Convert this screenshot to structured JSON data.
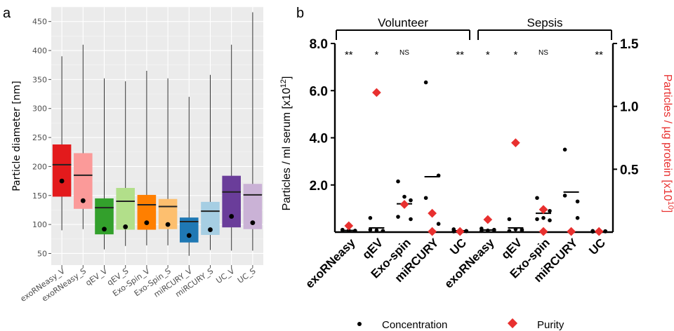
{
  "panels": {
    "a": "a",
    "b": "b"
  },
  "chart_data": [
    {
      "type": "box",
      "ylabel": "Particle diameter [nm]",
      "xlabel": "",
      "ylim": [
        30,
        475
      ],
      "yticks": [
        50,
        100,
        150,
        200,
        250,
        300,
        350,
        400,
        450
      ],
      "grid": true,
      "categories": [
        "exoRNeasy_V",
        "exoRNeasy_S",
        "qEV_V",
        "qEV_S",
        "Exo-Spin_V",
        "Exo-Spin_S",
        "miRCURY_V",
        "miRCURY_S",
        "UC_V",
        "UC_S"
      ],
      "boxes": [
        {
          "min": 90,
          "q1": 148,
          "median": 203,
          "q3": 238,
          "max": 390,
          "point": 175,
          "color": "#e31a1c"
        },
        {
          "min": 92,
          "q1": 127,
          "median": 185,
          "q3": 223,
          "max": 410,
          "point": 141,
          "color": "#fb9a99"
        },
        {
          "min": 57,
          "q1": 83,
          "median": 129,
          "q3": 145,
          "max": 352,
          "point": 92,
          "color": "#33a02c"
        },
        {
          "min": 63,
          "q1": 91,
          "median": 140,
          "q3": 163,
          "max": 347,
          "point": 96,
          "color": "#b2df8a"
        },
        {
          "min": 64,
          "q1": 91,
          "median": 134,
          "q3": 151,
          "max": 365,
          "point": 103,
          "color": "#ff7f00"
        },
        {
          "min": 64,
          "q1": 92,
          "median": 131,
          "q3": 144,
          "max": 352,
          "point": 100,
          "color": "#fdbf6f"
        },
        {
          "min": 46,
          "q1": 69,
          "median": 105,
          "q3": 112,
          "max": 320,
          "point": 81,
          "color": "#1f78b4"
        },
        {
          "min": 56,
          "q1": 82,
          "median": 123,
          "q3": 139,
          "max": 358,
          "point": 91,
          "color": "#a6cee3"
        },
        {
          "min": 55,
          "q1": 95,
          "median": 156,
          "q3": 184,
          "max": 410,
          "point": 114,
          "color": "#6a3d9a"
        },
        {
          "min": 55,
          "q1": 92,
          "median": 151,
          "q3": 170,
          "max": 466,
          "point": 103,
          "color": "#cab2d6"
        }
      ]
    },
    {
      "type": "scatter",
      "ylabel_left": "Particles / ml  serum [x10",
      "ylabel_left_sup": "12",
      "ylabel_left_end": "]",
      "ylabel_right": "Particles / µg protein [x10",
      "ylabel_right_sup": "10",
      "ylabel_right_end": "]",
      "ylim_left": [
        0,
        8.0
      ],
      "ylim_right": [
        0,
        1.5
      ],
      "yticks_left": [
        "8.0",
        "6.0",
        "4.0",
        "2.0"
      ],
      "yticks_left_values": [
        8.0,
        6.0,
        4.0,
        2.0
      ],
      "yticks_right": [
        "1.5",
        "1.0",
        "0.5"
      ],
      "yticks_right_values": [
        1.5,
        1.0,
        0.5
      ],
      "groups": [
        "Volunteer",
        "Sepsis"
      ],
      "categories": [
        "exoRNeasy",
        "qEV",
        "Exo-spin",
        "miRCURY",
        "UC",
        "exoRNeasy",
        "qEV",
        "Exo-spin",
        "miRCURY",
        "UC"
      ],
      "significance": [
        "**",
        "*",
        "NS",
        "",
        "**",
        "*",
        "*",
        "NS",
        "",
        "**"
      ],
      "concentration": [
        [
          0.08,
          0.05,
          0.1,
          0.06,
          0.07
        ],
        [
          0.6,
          0.05,
          0.1,
          0.05,
          0.08
        ],
        [
          2.15,
          1.35,
          0.65,
          0.55,
          1.5
        ],
        [
          6.35,
          2.4,
          1.45,
          0.35,
          0.08
        ],
        [
          0.12,
          0.05,
          0.03,
          0.04,
          0.05
        ],
        [
          0.15,
          0.08,
          0.05,
          0.1,
          0.07
        ],
        [
          0.55,
          0.1,
          0.05,
          0.08,
          0.12
        ],
        [
          1.45,
          0.9,
          0.55,
          0.5,
          0.6
        ],
        [
          3.5,
          1.3,
          1.55,
          0.6,
          0.05
        ],
        [
          0.05,
          0.03,
          0.02,
          0.04,
          0.03
        ]
      ],
      "concentration_mean": [
        0.07,
        0.18,
        1.2,
        2.35,
        0.06,
        0.09,
        0.18,
        0.8,
        1.7,
        0.03
      ],
      "purity": [
        [
          0.05
        ],
        [
          1.11
        ],
        [
          0.22
        ],
        [
          0.15,
          0.005
        ],
        [
          0.005
        ],
        [
          0.1
        ],
        [
          0.71
        ],
        [
          0.18,
          0.005
        ],
        [
          0.005
        ],
        [
          0.005
        ]
      ],
      "legend": [
        "Concentration",
        "Purity"
      ],
      "colors": {
        "concentration": "#000000",
        "purity": "#e8302f"
      }
    }
  ]
}
